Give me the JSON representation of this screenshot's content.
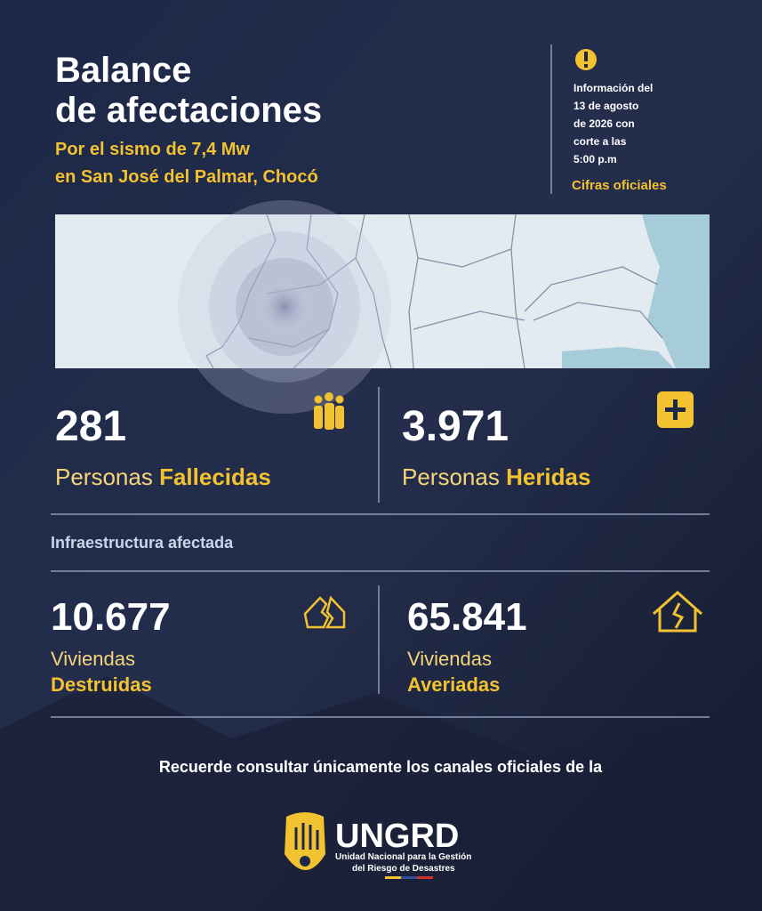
{
  "header": {
    "title_lines": [
      "Balance",
      "de afectaciones"
    ],
    "subtitle_lines": [
      "Por el sismo de 7,4 Mw",
      "en San José del Palmar, Chocó"
    ]
  },
  "info": {
    "lines": [
      "Información del",
      "13 de agosto",
      "de 2026 con",
      "corte a las",
      "5:00 p.m"
    ],
    "tag": "Cifras oficiales"
  },
  "people": [
    {
      "number": "281",
      "label": "Personas",
      "emphasis": "Fallecidas"
    },
    {
      "number": "3.971",
      "label": "Personas",
      "emphasis": "Heridas"
    }
  ],
  "section_title": "Infraestructura afectada",
  "housing": [
    {
      "number": "10.677",
      "label": "Viviendas",
      "emphasis": "Destruidas"
    },
    {
      "number": "65.841",
      "label": "Viviendas",
      "emphasis": "Averiadas"
    }
  ],
  "footer": {
    "text": "Recuerde consultar únicamente los canales oficiales de la",
    "logo_name": "UNGRD",
    "logo_lines": [
      "Unidad Nacional para la Gestión",
      "del Riesgo de Desastres"
    ]
  }
}
